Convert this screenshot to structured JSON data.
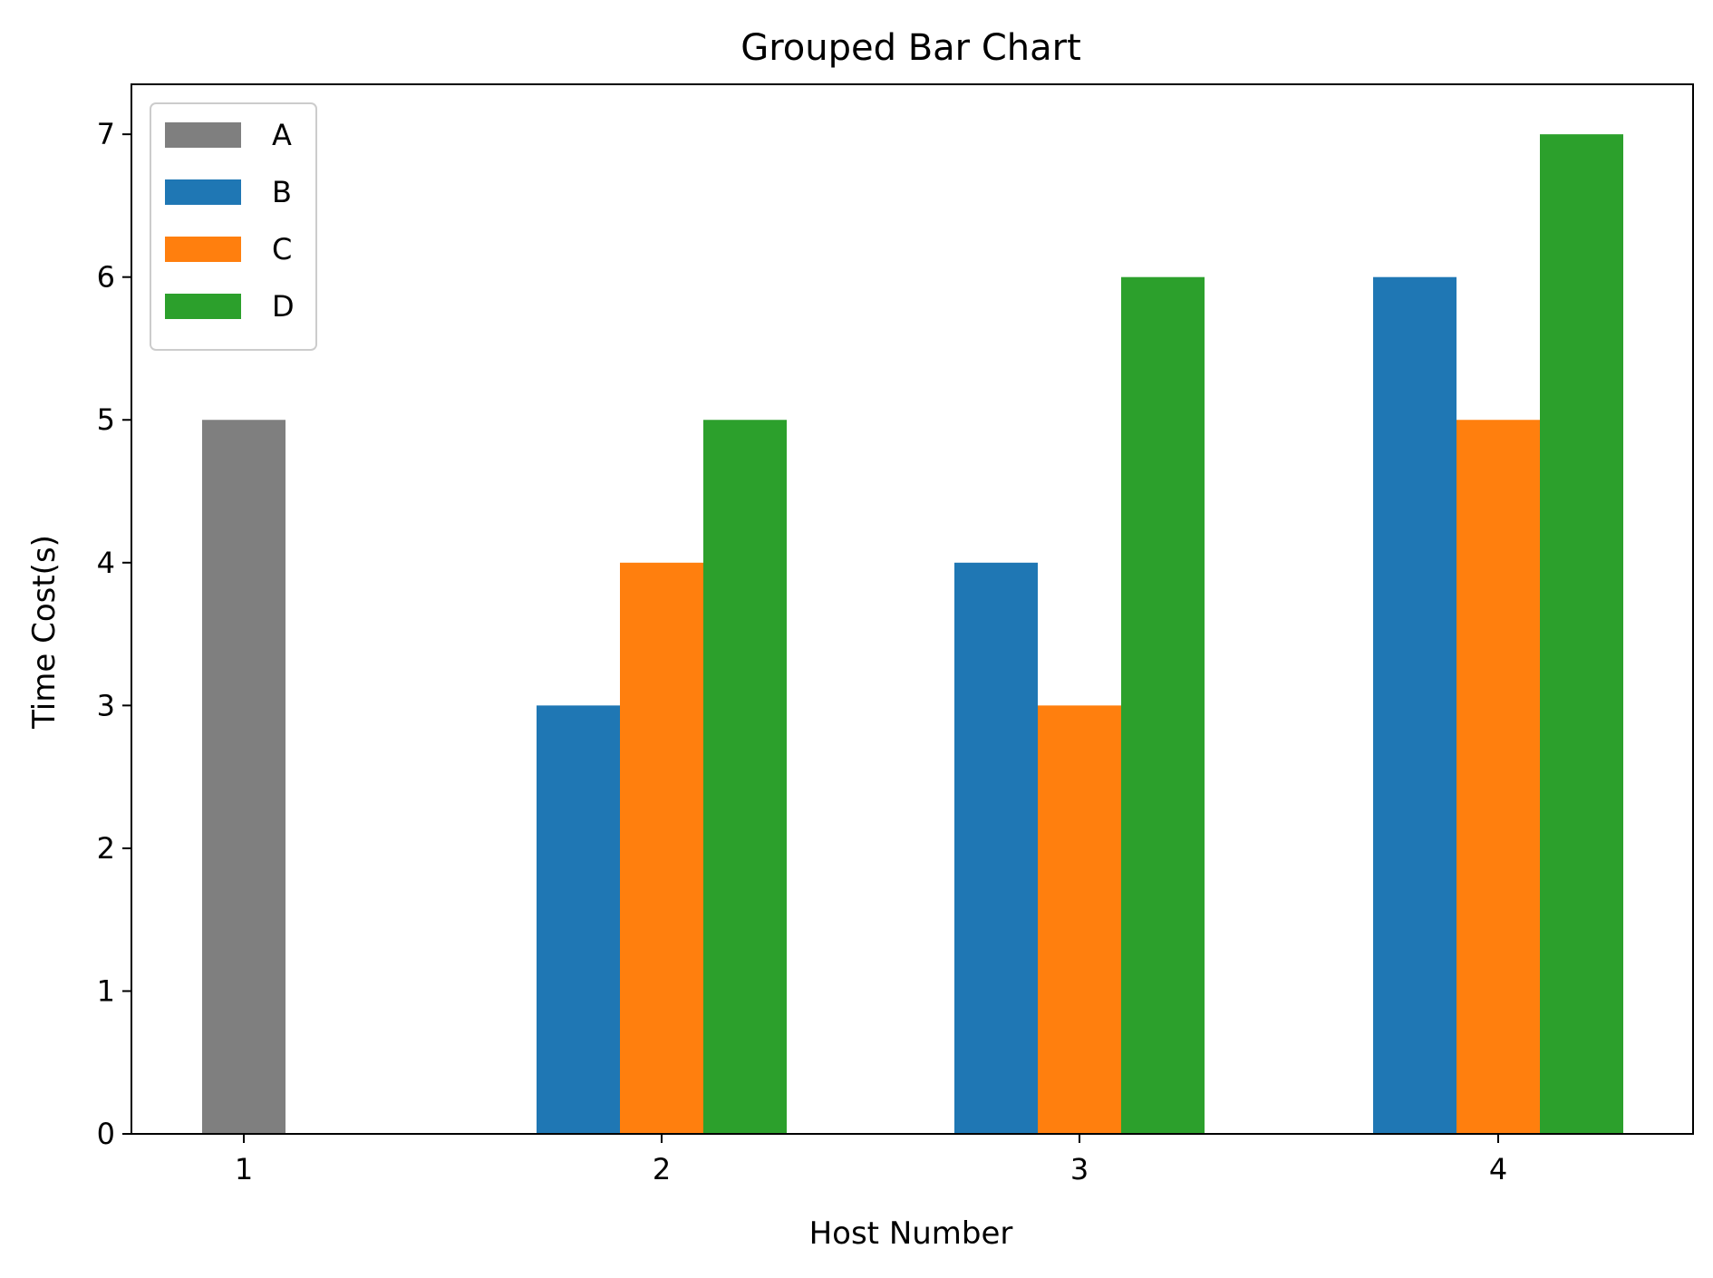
{
  "chart_data": {
    "type": "bar",
    "title": "Grouped Bar Chart",
    "xlabel": "Host Number",
    "ylabel": "Time Cost(s)",
    "categories": [
      "1",
      "2",
      "3",
      "4"
    ],
    "ylim": [
      0,
      7.35
    ],
    "yticks": [
      "0",
      "1",
      "2",
      "3",
      "4",
      "5",
      "6",
      "7"
    ],
    "grid": false,
    "legend": "upper-left",
    "series": [
      {
        "name": "A",
        "color": "#7f7f7f",
        "values": [
          5,
          null,
          null,
          null
        ]
      },
      {
        "name": "B",
        "color": "#1f77b4",
        "values": [
          null,
          3,
          4,
          6
        ]
      },
      {
        "name": "C",
        "color": "#ff7f0e",
        "values": [
          null,
          4,
          3,
          5
        ]
      },
      {
        "name": "D",
        "color": "#2ca02c",
        "values": [
          null,
          5,
          6,
          7
        ]
      }
    ]
  }
}
